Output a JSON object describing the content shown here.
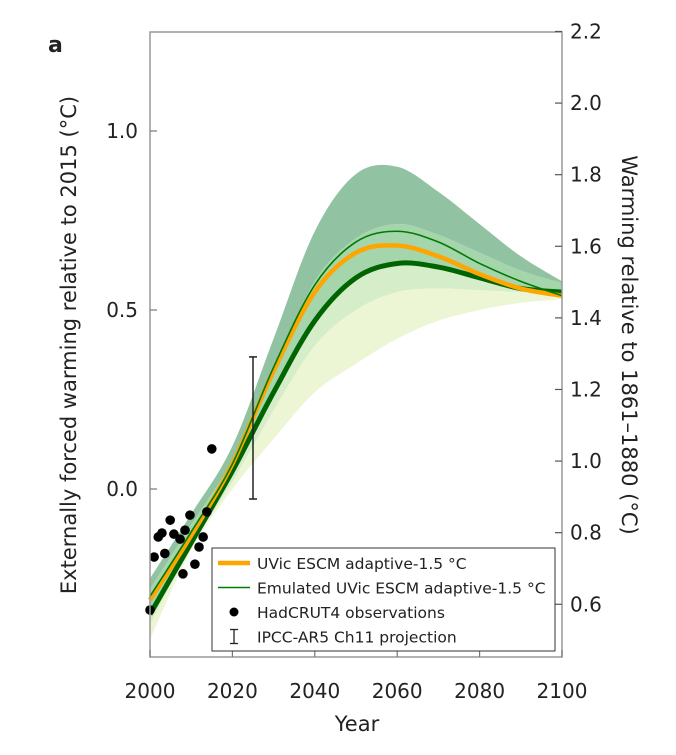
{
  "chart_data": {
    "type": "line",
    "panel_label": "a",
    "xlabel": "Year",
    "ylabel": "Externally forced warming relative to 2015 (°C)",
    "ylabel_right": "Warming relative to 1861–1880 (°C)",
    "xlim": [
      2000,
      2100
    ],
    "ylim": [
      -0.47,
      1.28
    ],
    "ylim_right": [
      0.47,
      2.2
    ],
    "right_axis_offset": 0.922,
    "xticks": [
      2000,
      2020,
      2040,
      2060,
      2080,
      2100
    ],
    "yticks": [
      0.0,
      0.5,
      1.0
    ],
    "ytick_labels": [
      "0.0",
      "0.5",
      "1.0"
    ],
    "yticks_right": [
      0.6,
      0.8,
      1.0,
      1.2,
      1.4,
      1.6,
      1.8,
      2.0,
      2.2
    ],
    "ytick_right_labels": [
      "0.6",
      "0.8",
      "1.0",
      "1.2",
      "1.4",
      "1.6",
      "1.8",
      "2.0",
      "2.2"
    ],
    "grid": false,
    "legend_placement": "bottom-right",
    "x": [
      2000,
      2010,
      2020,
      2030,
      2040,
      2050,
      2060,
      2070,
      2080,
      2090,
      2100
    ],
    "bands": [
      {
        "color": "#91c2a1",
        "upper": [
          -0.25,
          -0.07,
          0.12,
          0.42,
          0.72,
          0.88,
          0.9,
          0.83,
          0.74,
          0.65,
          0.58
        ],
        "lower": [
          -0.28,
          -0.1,
          0.08,
          0.33,
          0.58,
          0.7,
          0.74,
          0.71,
          0.66,
          0.61,
          0.575
        ]
      },
      {
        "color": "#a5d5ab",
        "upper": [
          -0.28,
          -0.1,
          0.08,
          0.33,
          0.58,
          0.7,
          0.74,
          0.71,
          0.66,
          0.61,
          0.575
        ],
        "lower": [
          -0.35,
          -0.15,
          0.05,
          0.27,
          0.47,
          0.59,
          0.63,
          0.62,
          0.59,
          0.56,
          0.55
        ]
      },
      {
        "color": "#d5edc8",
        "upper": [
          -0.35,
          -0.15,
          0.05,
          0.27,
          0.47,
          0.59,
          0.63,
          0.62,
          0.59,
          0.56,
          0.55
        ],
        "lower": [
          -0.38,
          -0.16,
          0.02,
          0.22,
          0.4,
          0.5,
          0.55,
          0.56,
          0.555,
          0.55,
          0.545
        ]
      },
      {
        "color": "#ecf6d4",
        "upper": [
          -0.38,
          -0.16,
          0.02,
          0.22,
          0.4,
          0.5,
          0.55,
          0.56,
          0.555,
          0.55,
          0.545
        ],
        "lower": [
          -0.42,
          -0.17,
          0.0,
          0.14,
          0.27,
          0.35,
          0.42,
          0.47,
          0.5,
          0.52,
          0.53
        ]
      }
    ],
    "series": [
      {
        "name": "Emulated UVic ESCM adaptive-1.5 °C",
        "color": "#007a00",
        "width": 1.6,
        "values": [
          -0.3,
          -0.12,
          0.07,
          0.34,
          0.57,
          0.69,
          0.72,
          0.69,
          0.63,
          0.58,
          0.54
        ]
      },
      {
        "name": "UVic ESCM adaptive-1.5 °C",
        "color": "#ffa500",
        "width": 4.5,
        "values": [
          -0.31,
          -0.13,
          0.07,
          0.33,
          0.55,
          0.66,
          0.68,
          0.65,
          0.6,
          0.56,
          0.54
        ]
      },
      {
        "name": "",
        "color": "#006400",
        "width": 5,
        "values": [
          -0.35,
          -0.15,
          0.05,
          0.27,
          0.47,
          0.59,
          0.63,
          0.62,
          0.59,
          0.56,
          0.55
        ]
      }
    ],
    "observations": {
      "name": "HadCRUT4 observations",
      "points": [
        [
          2000,
          -0.338
        ],
        [
          2001,
          -0.19
        ],
        [
          2002,
          -0.134
        ],
        [
          2002.9,
          -0.123
        ],
        [
          2003.6,
          -0.18
        ],
        [
          2004.9,
          -0.087
        ],
        [
          2005.8,
          -0.126
        ],
        [
          2007.3,
          -0.14
        ],
        [
          2008,
          -0.237
        ],
        [
          2008.5,
          -0.115
        ],
        [
          2009.7,
          -0.073
        ],
        [
          2010.9,
          -0.21
        ],
        [
          2011.9,
          -0.162
        ],
        [
          2012.9,
          -0.134
        ],
        [
          2013.8,
          -0.064
        ],
        [
          2015,
          0.112
        ]
      ]
    },
    "projection": {
      "name": "IPCC-AR5 Ch11 projection",
      "x": 2025,
      "low": -0.028,
      "high": 0.369
    },
    "legend": [
      {
        "label": "UVic ESCM adaptive-1.5 °C",
        "kind": "thick-line",
        "color": "#ffa500"
      },
      {
        "label": "Emulated UVic ESCM adaptive-1.5 °C",
        "kind": "thin-line",
        "color": "#007a00"
      },
      {
        "label": "HadCRUT4 observations",
        "kind": "dot",
        "color": "#000000"
      },
      {
        "label": "IPCC-AR5 Ch11 projection",
        "kind": "errorbar",
        "color": "#000000"
      }
    ]
  }
}
